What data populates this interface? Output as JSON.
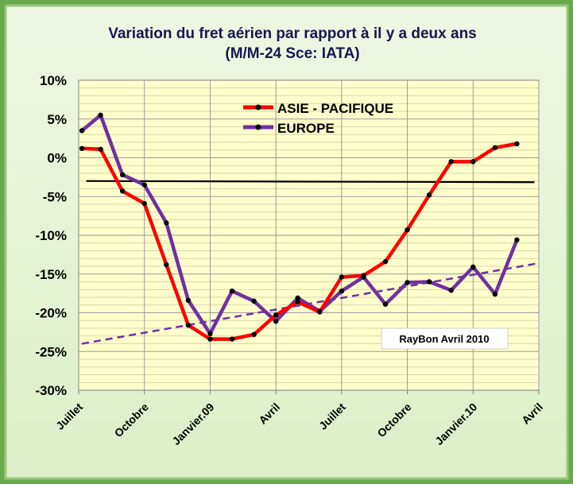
{
  "chart_data": {
    "type": "line",
    "title": "Variation du fret aérien  par rapport à il y a deux ans",
    "subtitle": "(M/M-24   Sce: IATA)",
    "y_ticks": [
      "10%",
      "5%",
      "0%",
      "-5%",
      "-10%",
      "-15%",
      "-20%",
      "-25%",
      "-30%"
    ],
    "ylim": [
      -30,
      10
    ],
    "x_tick_labels": [
      "Juillet",
      "Octobre",
      "Janvier.09",
      "Avril",
      "Juillet",
      "Octobre",
      "Janvier.10",
      "Avril"
    ],
    "x_range": [
      0,
      21
    ],
    "grid": true,
    "series": [
      {
        "name": "ASIE - PACIFIQUE",
        "color": "#ff0000",
        "x": [
          0.15,
          1,
          2,
          3,
          4,
          5,
          6,
          7,
          8,
          9,
          10,
          11,
          12,
          13,
          14,
          15,
          16,
          17,
          18,
          19,
          20
        ],
        "values": [
          1.2,
          1.1,
          -4.3,
          -5.9,
          -13.8,
          -21.6,
          -23.4,
          -23.4,
          -22.8,
          -20.3,
          -18.6,
          -19.9,
          -15.4,
          -15.2,
          -13.4,
          -9.3,
          -4.8,
          -0.5,
          -0.5,
          1.3,
          1.8
        ]
      },
      {
        "name": "EUROPE",
        "color": "#7030a0",
        "x": [
          0.15,
          1,
          2,
          3,
          4,
          5,
          6,
          7,
          8,
          9,
          10,
          11,
          12,
          13,
          14,
          15,
          16,
          17,
          18,
          19,
          20
        ],
        "values": [
          3.5,
          5.5,
          -2.2,
          -3.5,
          -8.4,
          -18.4,
          -22.7,
          -17.2,
          -18.5,
          -21.1,
          -18.1,
          -19.8,
          -17.2,
          -15.4,
          -18.9,
          -16.1,
          -16,
          -17.1,
          -14.1,
          -17.6,
          -10.6
        ]
      }
    ],
    "reference_line": {
      "y": -3,
      "color": "#000000"
    },
    "trend_line": {
      "points": [
        [
          0.15,
          -24
        ],
        [
          21,
          -13.6
        ]
      ],
      "color": "#7030a0",
      "style": "dashed"
    },
    "annotation": "RayBon Avril 2010",
    "legend_position": "top-center"
  }
}
